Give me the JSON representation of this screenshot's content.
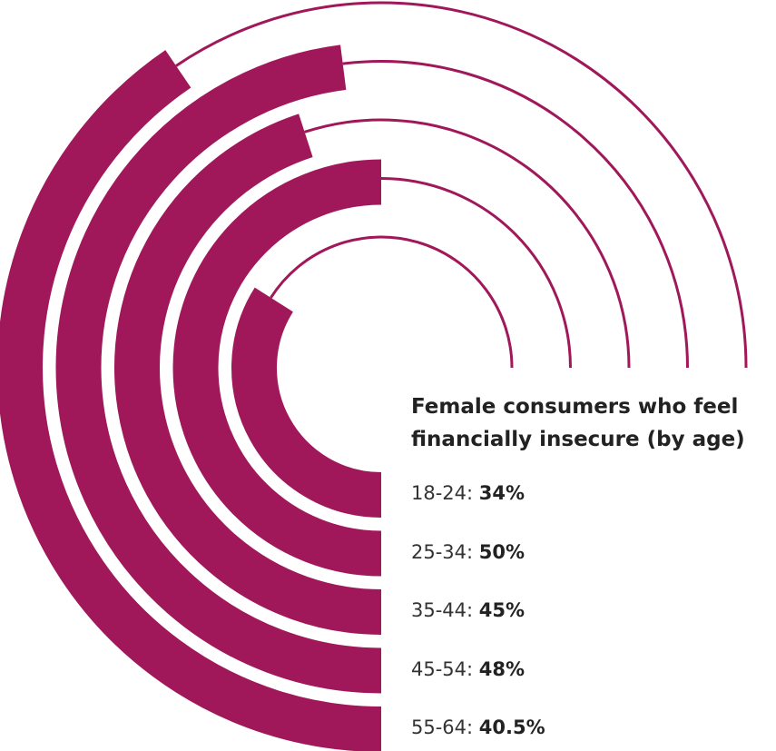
{
  "chart_data": {
    "type": "radial-bar",
    "title": "Female consumers who feel financially insecure (by age)",
    "categories": [
      "18-24:",
      "25-34:",
      "35-44:",
      "45-54:",
      "55-64:"
    ],
    "values": [
      34,
      50,
      45,
      48,
      40.5
    ],
    "value_labels": [
      "34%",
      "50%",
      "45%",
      "48%",
      "40.5%"
    ],
    "color": "#a0185a"
  }
}
